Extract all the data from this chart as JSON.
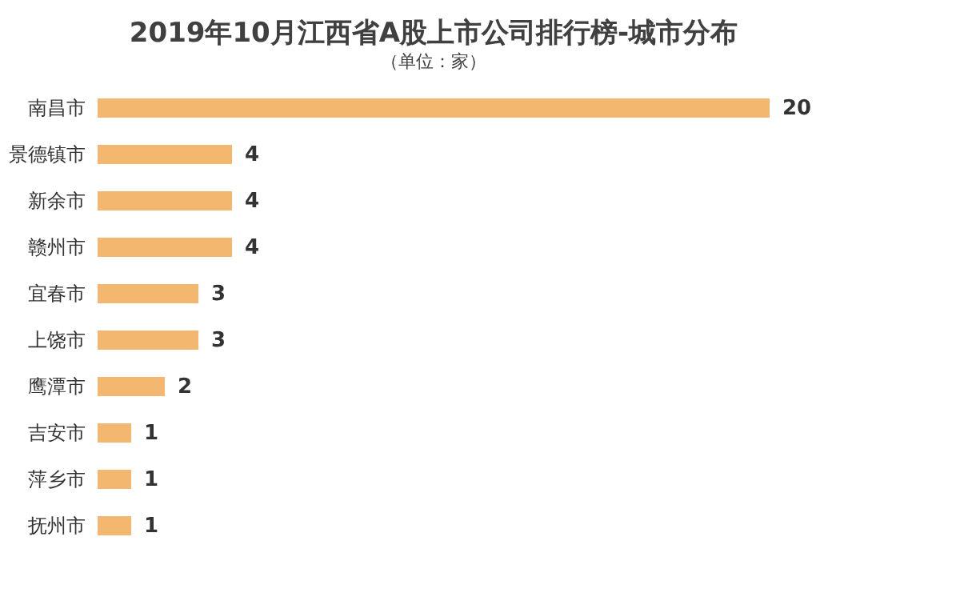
{
  "chart_data": {
    "type": "bar",
    "orientation": "horizontal",
    "title": "2019年10月江西省A股上市公司排行榜-城市分布",
    "subtitle": "（单位：家）",
    "categories": [
      "南昌市",
      "景德镇市",
      "新余市",
      "赣州市",
      "宜春市",
      "上饶市",
      "鹰潭市",
      "吉安市",
      "萍乡市",
      "抚州市"
    ],
    "values": [
      20,
      4,
      4,
      4,
      3,
      3,
      2,
      1,
      1,
      1
    ],
    "color": "#f4b76f",
    "data_labels": true
  }
}
